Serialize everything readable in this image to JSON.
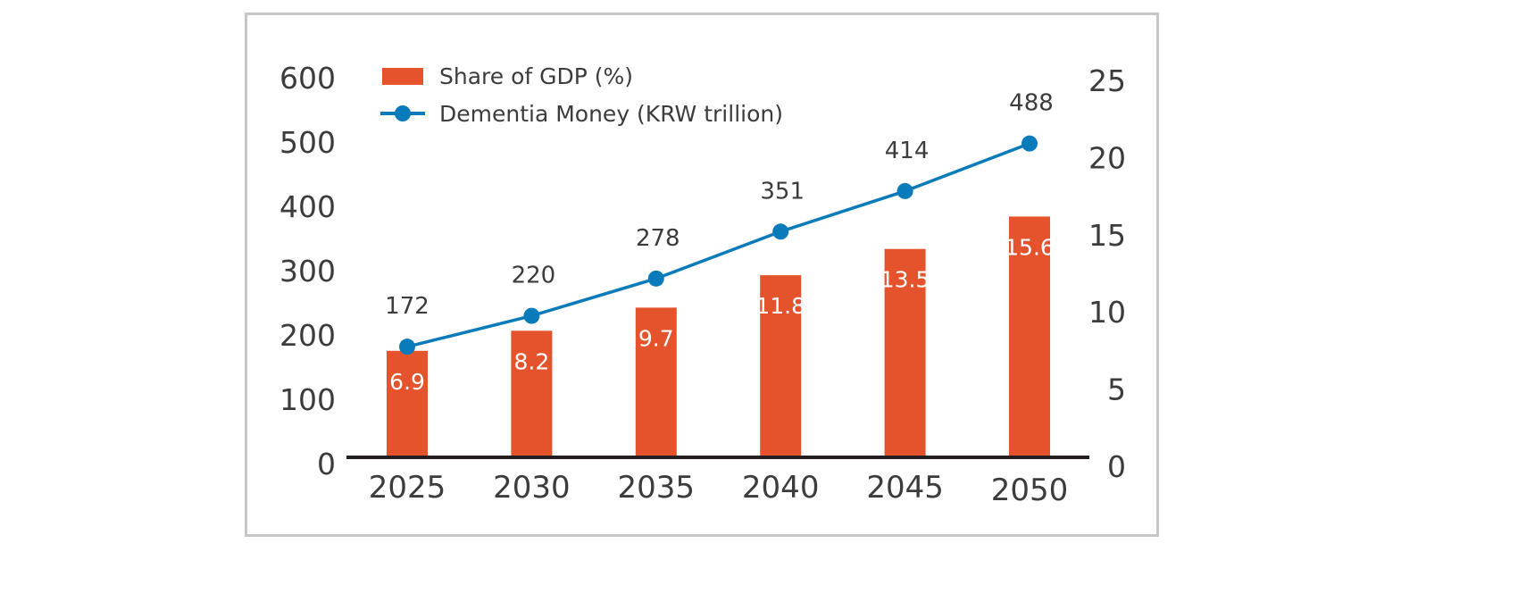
{
  "chart_data": {
    "type": "bar+line",
    "title": "",
    "categories": [
      "2025",
      "2030",
      "2035",
      "2040",
      "2045",
      "2050"
    ],
    "series": [
      {
        "name": "Share of GDP (%)",
        "type": "bar",
        "axis": "right",
        "values": [
          6.9,
          8.2,
          9.7,
          11.8,
          13.5,
          15.6
        ],
        "labels": [
          "6.9",
          "8.2",
          "9.7",
          "11.8",
          "13.5",
          "15.6"
        ],
        "color": "#e5532d"
      },
      {
        "name": "Dementia Money (KRW trillion)",
        "type": "line",
        "axis": "left",
        "values": [
          172,
          220,
          278,
          351,
          414,
          488
        ],
        "labels": [
          "172",
          "220",
          "278",
          "351",
          "414",
          "488"
        ],
        "color": "#0a7bba"
      }
    ],
    "left_axis": {
      "ylim": [
        0,
        600
      ],
      "ticks": [
        "0",
        "100",
        "200",
        "300",
        "400",
        "500",
        "600"
      ]
    },
    "right_axis": {
      "ylim": [
        0,
        25
      ],
      "ticks": [
        "0",
        "5",
        "10",
        "15",
        "20",
        "25"
      ]
    },
    "xlabel": "",
    "ylabel": "",
    "grid": false,
    "legend": "top-left"
  }
}
